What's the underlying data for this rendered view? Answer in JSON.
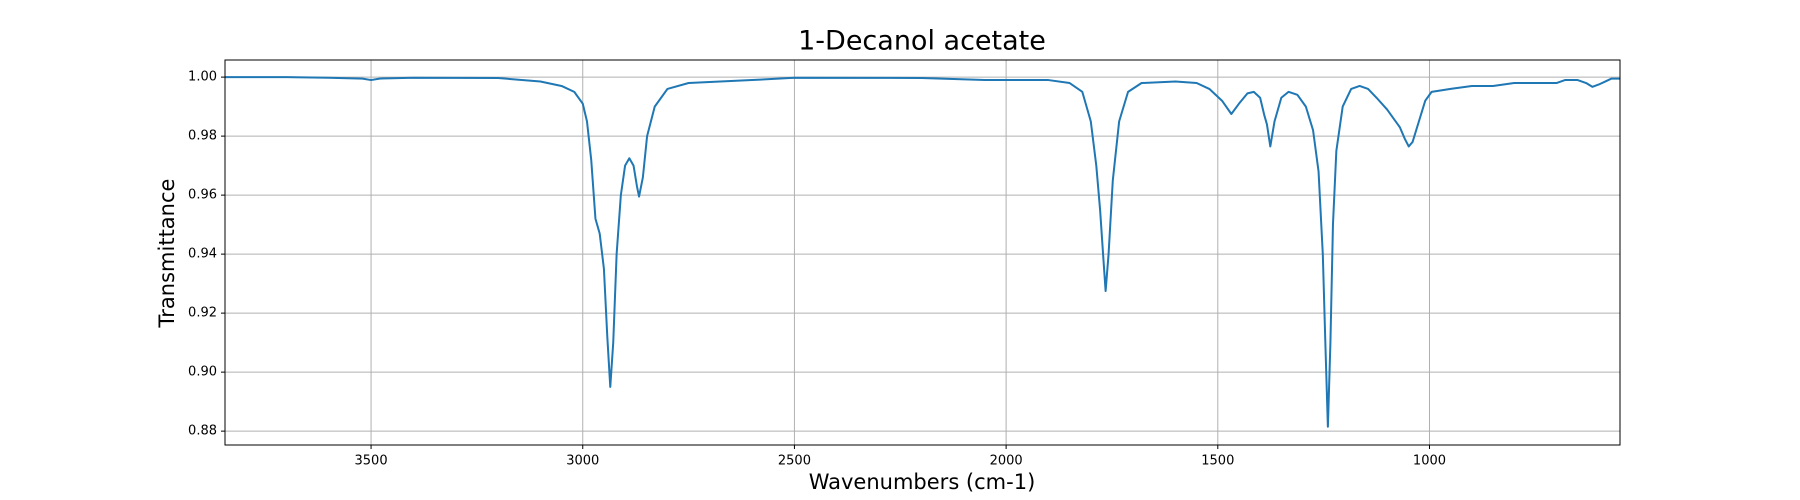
{
  "chart_data": {
    "type": "line",
    "title": "1-Decanol acetate",
    "x_label": "Wavenumbers (cm-1)",
    "y_label": "Transmittance",
    "x": [
      3845,
      3700,
      3600,
      3520,
      3500,
      3480,
      3400,
      3200,
      3100,
      3050,
      3020,
      3000,
      2990,
      2980,
      2970,
      2960,
      2950,
      2942,
      2935,
      2928,
      2920,
      2910,
      2900,
      2890,
      2880,
      2872,
      2867,
      2858,
      2848,
      2830,
      2800,
      2750,
      2600,
      2500,
      2200,
      2050,
      1900,
      1850,
      1820,
      1800,
      1787,
      1778,
      1771,
      1765,
      1758,
      1748,
      1733,
      1712,
      1680,
      1600,
      1550,
      1520,
      1490,
      1468,
      1450,
      1430,
      1415,
      1400,
      1390,
      1384,
      1376,
      1366,
      1350,
      1333,
      1312,
      1292,
      1275,
      1262,
      1252,
      1246,
      1240,
      1234,
      1228,
      1220,
      1205,
      1185,
      1165,
      1145,
      1125,
      1100,
      1085,
      1070,
      1058,
      1049,
      1040,
      1025,
      1010,
      995,
      950,
      900,
      850,
      800,
      750,
      700,
      680,
      650,
      630,
      615,
      600,
      585,
      570,
      550
    ],
    "series": [
      {
        "name": "1-Decanol acetate",
        "color": "#1f77b4",
        "values": [
          1.0,
          1.0,
          0.9998,
          0.9995,
          0.999,
          0.9995,
          0.9998,
          0.9997,
          0.9985,
          0.997,
          0.995,
          0.991,
          0.985,
          0.972,
          0.952,
          0.947,
          0.935,
          0.912,
          0.895,
          0.91,
          0.94,
          0.96,
          0.97,
          0.9725,
          0.97,
          0.963,
          0.9595,
          0.966,
          0.98,
          0.99,
          0.996,
          0.998,
          0.999,
          0.9998,
          0.9997,
          0.999,
          0.999,
          0.998,
          0.995,
          0.985,
          0.97,
          0.955,
          0.94,
          0.9275,
          0.94,
          0.965,
          0.985,
          0.995,
          0.998,
          0.9985,
          0.998,
          0.996,
          0.992,
          0.9875,
          0.991,
          0.9945,
          0.995,
          0.993,
          0.987,
          0.984,
          0.9765,
          0.985,
          0.993,
          0.995,
          0.994,
          0.99,
          0.982,
          0.968,
          0.94,
          0.91,
          0.8815,
          0.91,
          0.95,
          0.975,
          0.99,
          0.996,
          0.997,
          0.996,
          0.993,
          0.989,
          0.986,
          0.983,
          0.979,
          0.9765,
          0.978,
          0.985,
          0.992,
          0.995,
          0.996,
          0.997,
          0.997,
          0.998,
          0.998,
          0.998,
          0.999,
          0.999,
          0.998,
          0.9967,
          0.9975,
          0.9985,
          0.9995,
          0.9995
        ]
      }
    ],
    "xlim": [
      3845,
      550
    ],
    "ylim": [
      0.8753,
      1.0058
    ],
    "xticks": [
      3500,
      3000,
      2500,
      2000,
      1500,
      1000
    ],
    "yticks": [
      {
        "value": 1,
        "label": "1.00"
      },
      0.98,
      0.96,
      0.94,
      0.92,
      {
        "value": 0.9,
        "label": "0.90"
      },
      0.88
    ],
    "grid": true
  }
}
